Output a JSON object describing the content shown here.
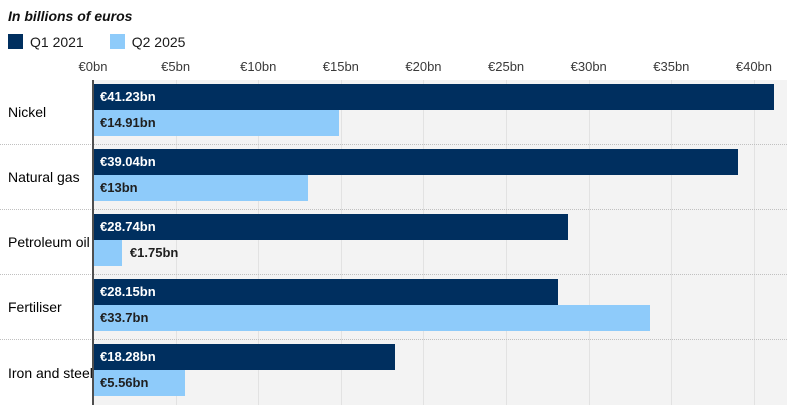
{
  "title": "In billions of euros",
  "chart_data": {
    "type": "bar",
    "orientation": "horizontal",
    "title": "In billions of euros",
    "categories": [
      "Nickel",
      "Natural gas",
      "Petroleum oil",
      "Fertiliser",
      "Iron and steel"
    ],
    "series": [
      {
        "name": "Q1 2021",
        "color": "#002f5f",
        "label_color": "#ffffff",
        "values": [
          41.23,
          39.04,
          28.74,
          28.15,
          18.28
        ],
        "value_labels": [
          "€41.23bn",
          "€39.04bn",
          "€28.74bn",
          "€28.15bn",
          "€18.28bn"
        ]
      },
      {
        "name": "Q2 2025",
        "color": "#8ecbfa",
        "label_color": "#1f1f1f",
        "values": [
          14.91,
          13,
          1.75,
          33.7,
          5.56
        ],
        "value_labels": [
          "€14.91bn",
          "€13bn",
          "€1.75bn",
          "€33.7bn",
          "€5.56bn"
        ]
      }
    ],
    "x_axis": {
      "max": 42,
      "ticks": [
        {
          "value": 0,
          "label": "€0bn"
        },
        {
          "value": 5,
          "label": "€5bn"
        },
        {
          "value": 10,
          "label": "€10bn"
        },
        {
          "value": 15,
          "label": "€15bn"
        },
        {
          "value": 20,
          "label": "€20bn"
        },
        {
          "value": 25,
          "label": "€25bn"
        },
        {
          "value": 30,
          "label": "€30bn"
        },
        {
          "value": 35,
          "label": "€35bn"
        },
        {
          "value": 40,
          "label": "€40bn"
        }
      ]
    },
    "grid": true,
    "legend_position": "top-left"
  },
  "colors": {
    "q1_bar": "#002f5f",
    "q2_bar": "#8ecbfa",
    "plot_background": "#f3f3f3",
    "gridline": "#e2e2e2",
    "axis_line": "#4f4f4f",
    "row_separator": "#c0c0c0",
    "value_label_on_dark": "#ffffff",
    "value_label_on_light": "#1f1f1f"
  }
}
